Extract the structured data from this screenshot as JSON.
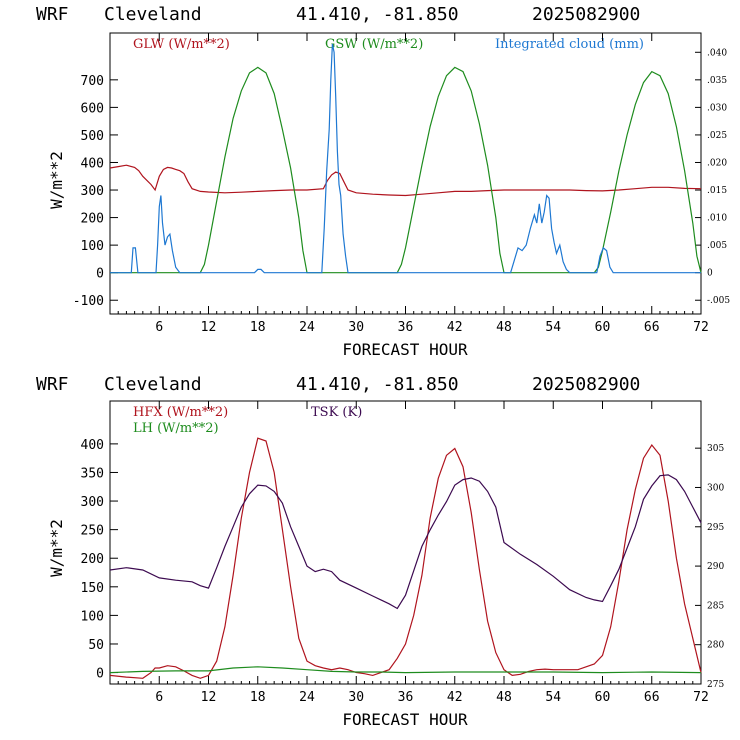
{
  "chart_data": [
    {
      "type": "line",
      "header": {
        "model": "WRF",
        "station": "Cleveland",
        "coords": "41.410, -81.850",
        "init": "2025082900"
      },
      "xlabel": "FORECAST HOUR",
      "ylabel": "W/m**2",
      "xlim": [
        0,
        72
      ],
      "xticks": [
        6,
        12,
        18,
        24,
        30,
        36,
        42,
        48,
        54,
        60,
        66,
        72
      ],
      "ylim": [
        -150,
        870
      ],
      "yticks": [
        -100,
        0,
        100,
        200,
        300,
        400,
        500,
        600,
        700
      ],
      "y2lim": [
        -0.0075,
        0.0435
      ],
      "y2ticks": [
        -0.005,
        0.0,
        0.005,
        0.01,
        0.015,
        0.02,
        0.025,
        0.03,
        0.035,
        0.04
      ],
      "y2ticklabels": [
        "-.005",
        "0",
        ".005",
        ".010",
        ".015",
        ".020",
        ".025",
        ".030",
        ".035",
        ".040"
      ],
      "series": [
        {
          "name": "GLW (W/m**2)",
          "color": "#b0141e",
          "axis": "left",
          "x": [
            0,
            1,
            2,
            3,
            3.5,
            4,
            5,
            5.5,
            6,
            6.5,
            7,
            7.5,
            8,
            8.5,
            9,
            9.5,
            10,
            11,
            12,
            14,
            16,
            18,
            20,
            22,
            24,
            26,
            26.5,
            27,
            27.5,
            28,
            28.5,
            29,
            30,
            32,
            34,
            36,
            38,
            40,
            42,
            44,
            46,
            48,
            50,
            52,
            54,
            56,
            58,
            60,
            62,
            64,
            66,
            68,
            70,
            72
          ],
          "y": [
            380,
            385,
            390,
            382,
            370,
            350,
            320,
            300,
            350,
            375,
            382,
            380,
            375,
            370,
            360,
            330,
            305,
            295,
            293,
            290,
            292,
            295,
            298,
            300,
            300,
            305,
            335,
            355,
            365,
            360,
            330,
            300,
            290,
            285,
            282,
            280,
            285,
            290,
            295,
            295,
            298,
            300,
            300,
            300,
            300,
            300,
            298,
            297,
            300,
            305,
            310,
            310,
            306,
            305
          ]
        },
        {
          "name": "GSW (W/m**2)",
          "color": "#1e8c1e",
          "axis": "left",
          "x": [
            0,
            11,
            11.5,
            12,
            13,
            14,
            15,
            16,
            17,
            18,
            19,
            20,
            21,
            22,
            23,
            23.5,
            24,
            35,
            35.5,
            36,
            37,
            38,
            39,
            40,
            41,
            42,
            43,
            44,
            45,
            46,
            47,
            47.5,
            48,
            59,
            59.5,
            60,
            61,
            62,
            63,
            64,
            65,
            66,
            67,
            68,
            69,
            70,
            71,
            71.5,
            72
          ],
          "y": [
            0,
            0,
            30,
            100,
            260,
            420,
            560,
            660,
            725,
            745,
            725,
            650,
            520,
            380,
            200,
            80,
            0,
            0,
            30,
            90,
            240,
            390,
            530,
            640,
            715,
            745,
            730,
            660,
            540,
            390,
            200,
            70,
            0,
            0,
            20,
            80,
            220,
            370,
            500,
            610,
            690,
            730,
            715,
            650,
            530,
            370,
            180,
            60,
            0
          ]
        },
        {
          "name": "Integrated cloud (mm)",
          "color": "#1e78d2",
          "axis": "right",
          "x": [
            0,
            2.6,
            2.8,
            3.1,
            3.4,
            5.6,
            5.8,
            6.0,
            6.2,
            6.4,
            6.7,
            7.0,
            7.3,
            7.6,
            8.0,
            8.5,
            17.6,
            18.0,
            18.4,
            18.8,
            25.8,
            26.1,
            26.4,
            26.7,
            26.9,
            27.1,
            27.3,
            27.5,
            27.7,
            27.9,
            28.1,
            28.4,
            28.7,
            29,
            48.8,
            49.2,
            49.7,
            50.2,
            50.7,
            51.2,
            51.7,
            52.0,
            52.3,
            52.6,
            52.9,
            53.2,
            53.5,
            53.8,
            54.1,
            54.4,
            54.8,
            55.2,
            55.6,
            56.0,
            59.3,
            59.7,
            60.1,
            60.5,
            60.9,
            61.3,
            72
          ],
          "y": [
            0,
            0,
            0.0045,
            0.0045,
            0,
            0,
            0.005,
            0.012,
            0.014,
            0.009,
            0.005,
            0.0065,
            0.007,
            0.004,
            0.001,
            0,
            0,
            0.0006,
            0.0006,
            0,
            0,
            0.008,
            0.0185,
            0.026,
            0.035,
            0.0415,
            0.04,
            0.032,
            0.022,
            0.016,
            0.014,
            0.007,
            0.003,
            0,
            0,
            0.002,
            0.0045,
            0.004,
            0.005,
            0.008,
            0.0105,
            0.009,
            0.0125,
            0.009,
            0.011,
            0.014,
            0.0135,
            0.008,
            0.0055,
            0.0035,
            0.005,
            0.002,
            0.0006,
            0,
            0,
            0.003,
            0.0045,
            0.004,
            0.001,
            0,
            0
          ]
        }
      ]
    },
    {
      "type": "line",
      "header": {
        "model": "WRF",
        "station": "Cleveland",
        "coords": "41.410, -81.850",
        "init": "2025082900"
      },
      "xlabel": "FORECAST HOUR",
      "ylabel": "W/m**2",
      "xlim": [
        0,
        72
      ],
      "xticks": [
        6,
        12,
        18,
        24,
        30,
        36,
        42,
        48,
        54,
        60,
        66,
        72
      ],
      "ylim": [
        -20,
        475
      ],
      "yticks": [
        0,
        50,
        100,
        150,
        200,
        250,
        300,
        350,
        400
      ],
      "y2lim": [
        275,
        311.0
      ],
      "y2ticks": [
        275,
        280,
        285,
        290,
        295,
        300,
        305
      ],
      "series": [
        {
          "name": "HFX (W/m**2)",
          "color": "#b0141e",
          "axis": "left",
          "x": [
            0,
            2,
            4,
            5,
            5.5,
            6,
            7,
            8,
            9,
            10,
            11,
            12,
            13,
            14,
            15,
            16,
            17,
            18,
            19,
            20,
            21,
            22,
            23,
            24,
            25,
            26,
            27,
            28,
            29,
            30,
            31,
            32,
            33,
            34,
            35,
            36,
            37,
            38,
            39,
            40,
            41,
            42,
            43,
            44,
            45,
            46,
            47,
            48,
            49,
            50,
            51,
            52,
            53,
            54,
            55,
            56,
            57,
            58,
            59,
            60,
            61,
            62,
            63,
            64,
            65,
            66,
            67,
            68,
            69,
            70,
            71,
            72
          ],
          "y": [
            -5,
            -8,
            -10,
            0,
            8,
            8,
            12,
            10,
            3,
            -5,
            -10,
            -5,
            20,
            80,
            170,
            270,
            350,
            410,
            405,
            350,
            250,
            150,
            60,
            20,
            12,
            8,
            5,
            8,
            5,
            0,
            -2,
            -5,
            0,
            5,
            25,
            50,
            100,
            170,
            270,
            340,
            380,
            392,
            360,
            280,
            180,
            90,
            35,
            5,
            -5,
            -3,
            2,
            5,
            6,
            5,
            5,
            5,
            5,
            10,
            15,
            30,
            80,
            160,
            250,
            320,
            375,
            398,
            380,
            300,
            200,
            120,
            60,
            0
          ]
        },
        {
          "name": "LH (W/m**2)",
          "color": "#1e8c1e",
          "axis": "left",
          "x": [
            0,
            4,
            8,
            12,
            15,
            18,
            21,
            24,
            27,
            30,
            33,
            36,
            42,
            48,
            54,
            60,
            66,
            72
          ],
          "y": [
            0,
            2,
            3,
            3,
            8,
            10,
            8,
            5,
            2,
            1,
            1,
            0,
            1,
            1,
            1,
            0,
            1,
            0
          ],
          "yaxisNote": "values near zero"
        },
        {
          "name": "TSK (K)",
          "color": "#3c0a50",
          "axis": "right",
          "x": [
            0,
            2,
            4,
            6,
            8,
            10,
            11,
            12,
            13,
            14,
            15,
            16,
            17,
            18,
            19,
            20,
            21,
            22,
            23,
            24,
            25,
            26,
            27,
            28,
            30,
            32,
            34,
            35,
            36,
            37,
            38,
            39,
            40,
            41,
            42,
            43,
            44,
            45,
            46,
            47,
            48,
            50,
            52,
            54,
            56,
            58,
            59,
            60,
            61,
            62,
            63,
            64,
            65,
            66,
            67,
            68,
            69,
            70,
            71,
            72
          ],
          "y": [
            289.5,
            289.8,
            289.5,
            288.5,
            288.2,
            288,
            287.5,
            287.2,
            289.8,
            292.5,
            295,
            297.5,
            299.2,
            300.3,
            300.2,
            299.5,
            298,
            295,
            292.5,
            290,
            289.3,
            289.6,
            289.3,
            288.2,
            287.2,
            286.2,
            285.2,
            284.6,
            286.3,
            289.4,
            292.5,
            294.6,
            296.5,
            298.2,
            300.3,
            301,
            301.2,
            300.8,
            299.5,
            297.5,
            293,
            291.5,
            290.2,
            288.7,
            287,
            286,
            285.7,
            285.5,
            287.5,
            289.6,
            292.3,
            295,
            298.5,
            300.2,
            301.5,
            301.6,
            301,
            299.5,
            297.5,
            295.5
          ]
        }
      ]
    }
  ]
}
